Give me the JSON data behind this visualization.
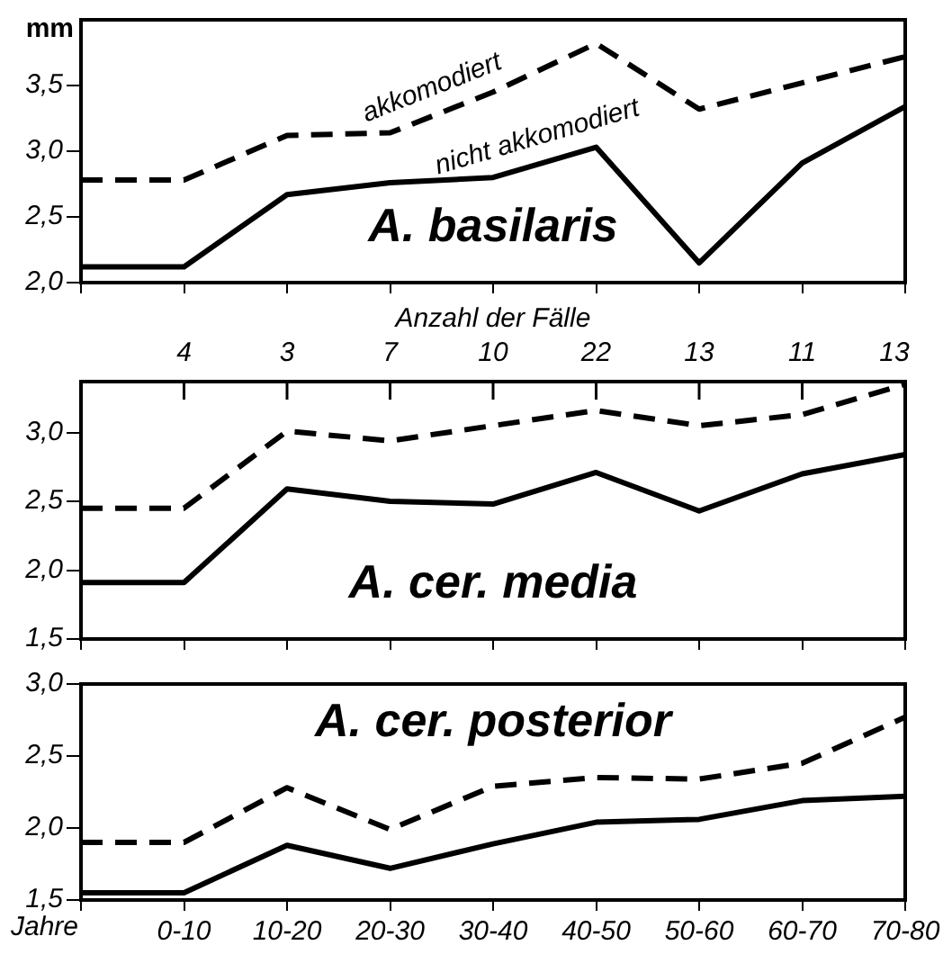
{
  "chart_data": [
    {
      "type": "line",
      "title": "A. basilaris",
      "ylabel": "mm",
      "categories": [
        null,
        null,
        null,
        null,
        null,
        null,
        null,
        null,
        null
      ],
      "series": [
        {
          "name": "akkomodiert",
          "color": "#000000",
          "line_style": "dashed",
          "values": [
            2.78,
            2.78,
            3.12,
            3.14,
            3.45,
            3.82,
            3.32,
            3.52,
            3.72
          ]
        },
        {
          "name": "nicht akkomodiert",
          "color": "#000000",
          "line_style": "solid",
          "values": [
            2.12,
            2.12,
            2.67,
            2.76,
            2.8,
            3.03,
            2.15,
            2.91,
            3.34
          ]
        }
      ],
      "ylim": [
        2.0,
        4.0
      ],
      "yticks": [
        {
          "value": 2.0,
          "label": "2,0"
        },
        {
          "value": 2.5,
          "label": "2,5"
        },
        {
          "value": 3.0,
          "label": "3,0"
        },
        {
          "value": 3.5,
          "label": "3,5"
        }
      ],
      "grid": false,
      "legend": false,
      "marker": "none",
      "tick_labels": "y"
    },
    {
      "type": "line",
      "title": "A. cer. media",
      "categories": [
        null,
        null,
        null,
        null,
        null,
        null,
        null,
        null,
        null
      ],
      "series": [
        {
          "color": "#000000",
          "line_style": "dashed",
          "values": [
            2.45,
            2.45,
            3.01,
            2.94,
            3.05,
            3.16,
            3.05,
            3.13,
            3.35
          ]
        },
        {
          "color": "#000000",
          "line_style": "solid",
          "values": [
            1.91,
            1.91,
            2.59,
            2.5,
            2.48,
            2.71,
            2.43,
            2.7,
            2.84
          ]
        }
      ],
      "ylim": [
        1.5,
        3.37
      ],
      "yticks": [
        {
          "value": 1.5,
          "label": "1,5"
        },
        {
          "value": 2.0,
          "label": "2,0"
        },
        {
          "value": 2.5,
          "label": "2,5"
        },
        {
          "value": 3.0,
          "label": "3,0"
        }
      ],
      "annotations": [
        "Anzahl der Fälle",
        "4",
        "3",
        "7",
        "10",
        "22",
        "13",
        "11",
        "13"
      ],
      "grid": false,
      "legend": false,
      "marker": "none",
      "tick_labels": "y"
    },
    {
      "type": "line",
      "title": "A. cer. posterior",
      "xlabel": "Jahre",
      "categories": [
        null,
        "0-10",
        "10-20",
        "20-30",
        "30-40",
        "40-50",
        "50-60",
        "60-70",
        "70-80"
      ],
      "series": [
        {
          "color": "#000000",
          "line_style": "dashed",
          "values": [
            1.9,
            1.9,
            2.28,
            1.99,
            2.29,
            2.35,
            2.34,
            2.45,
            2.77
          ]
        },
        {
          "color": "#000000",
          "line_style": "solid",
          "values": [
            1.55,
            1.55,
            1.88,
            1.72,
            1.89,
            2.04,
            2.06,
            2.19,
            2.22
          ]
        }
      ],
      "ylim": [
        1.5,
        3.0
      ],
      "yticks": [
        {
          "value": 1.5,
          "label": "1,5"
        },
        {
          "value": 2.0,
          "label": "2,0"
        },
        {
          "value": 2.5,
          "label": "2,5"
        },
        {
          "value": 3.0,
          "label": "3,0"
        }
      ],
      "grid": false,
      "legend": false,
      "marker": "none"
    }
  ]
}
